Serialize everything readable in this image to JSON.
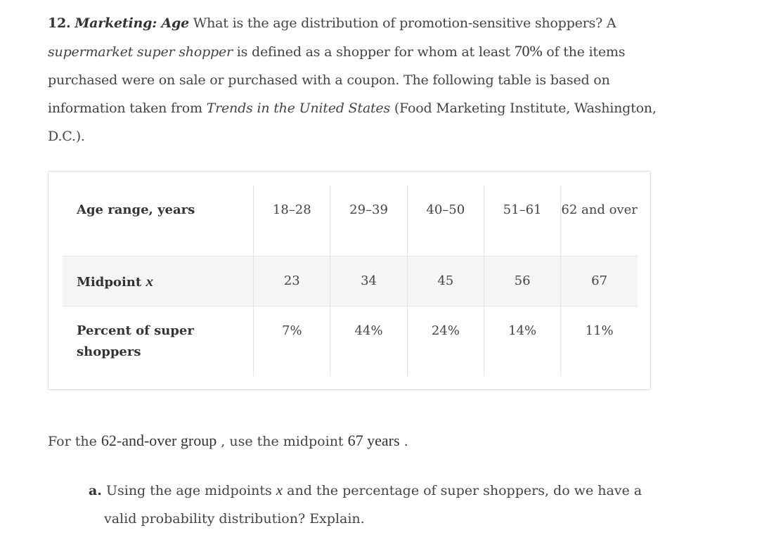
{
  "problem": {
    "number": "12.",
    "topic": "Marketing: Age",
    "text1": " What is the age distribution of promotion-sensitive shoppers? A ",
    "term": "supermarket super shopper",
    "text2": " is defined as a shopper for whom at least ",
    "percent": "70%",
    "text3": " of the items purchased were on sale or purchased with a coupon. The following table is based on information taken from ",
    "source_title": "Trends in the United States",
    "text4": " (Food Marketing Institute, Washington, D.C.)."
  },
  "table": {
    "row_age": {
      "header": "Age range, years",
      "values": [
        "18–28",
        "29–39",
        "40–50",
        "51–61",
        "62 and over"
      ]
    },
    "row_mid": {
      "header": "Midpoint",
      "symbol": "x",
      "values": [
        "23",
        "34",
        "45",
        "56",
        "67"
      ]
    },
    "row_pct": {
      "header": "Percent of super shoppers",
      "values": [
        "7%",
        "44%",
        "24%",
        "14%",
        "11%"
      ]
    }
  },
  "note": {
    "prefix": "For the ",
    "group": "62-and-over group",
    "middle": " , use the midpoint ",
    "value": "67 years",
    "suffix": " ."
  },
  "question_a": {
    "letter": "a.",
    "text1": " Using the age midpoints ",
    "symbol": "x",
    "text2": " and the percentage of super shoppers, do we have a",
    "text3": "valid probability distribution? Explain."
  }
}
